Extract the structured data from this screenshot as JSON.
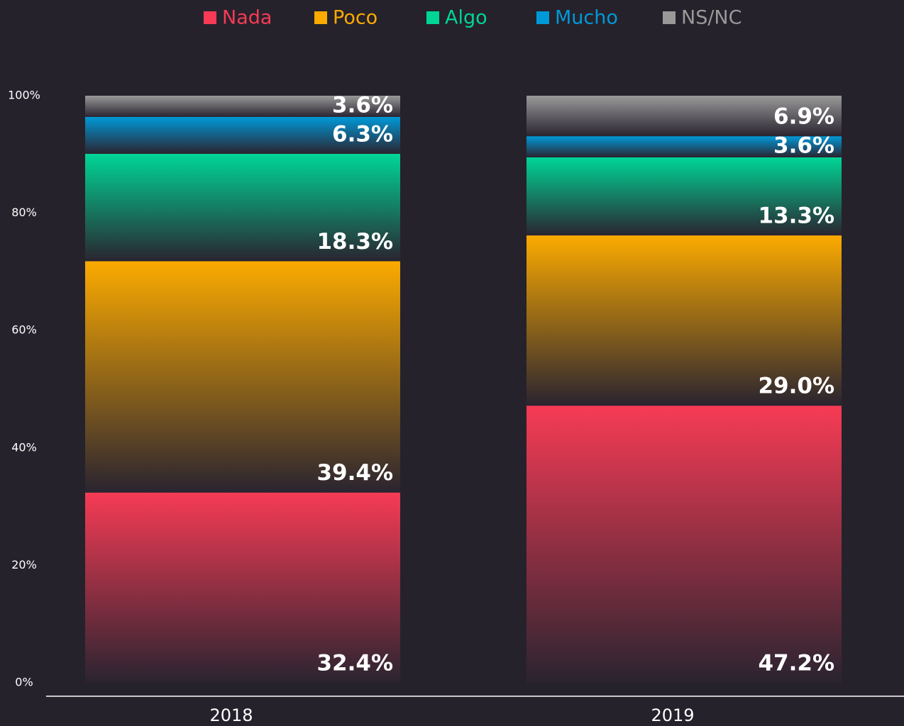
{
  "chart_data": {
    "type": "stacked-bar",
    "categories": [
      "2018",
      "2019"
    ],
    "series": [
      {
        "name": "Nada",
        "color": "#f73b55",
        "values": [
          32.4,
          47.2
        ],
        "value_labels": [
          "32.4%",
          "47.2%"
        ]
      },
      {
        "name": "Poco",
        "color": "#fbaa00",
        "values": [
          39.4,
          29.0
        ],
        "value_labels": [
          "39.4%",
          "29.0%"
        ]
      },
      {
        "name": "Algo",
        "color": "#00d597",
        "values": [
          18.3,
          13.3
        ],
        "value_labels": [
          "18.3%",
          "13.3%"
        ]
      },
      {
        "name": "Mucho",
        "color": "#0099d8",
        "values": [
          6.3,
          3.6
        ],
        "value_labels": [
          "6.3%",
          "3.6%"
        ]
      },
      {
        "name": "NS/NC",
        "color": "#999999",
        "values": [
          3.6,
          6.9
        ],
        "value_labels": [
          "3.6%",
          "6.9%"
        ]
      }
    ],
    "ylim": [
      0,
      100
    ],
    "yticks": [
      {
        "value": 0,
        "label": "0%"
      },
      {
        "value": 20,
        "label": "20%"
      },
      {
        "value": 40,
        "label": "40%"
      },
      {
        "value": 60,
        "label": "60%"
      },
      {
        "value": 80,
        "label": "80%"
      },
      {
        "value": 100,
        "label": "100%"
      }
    ],
    "grid": false,
    "legend": "top"
  }
}
